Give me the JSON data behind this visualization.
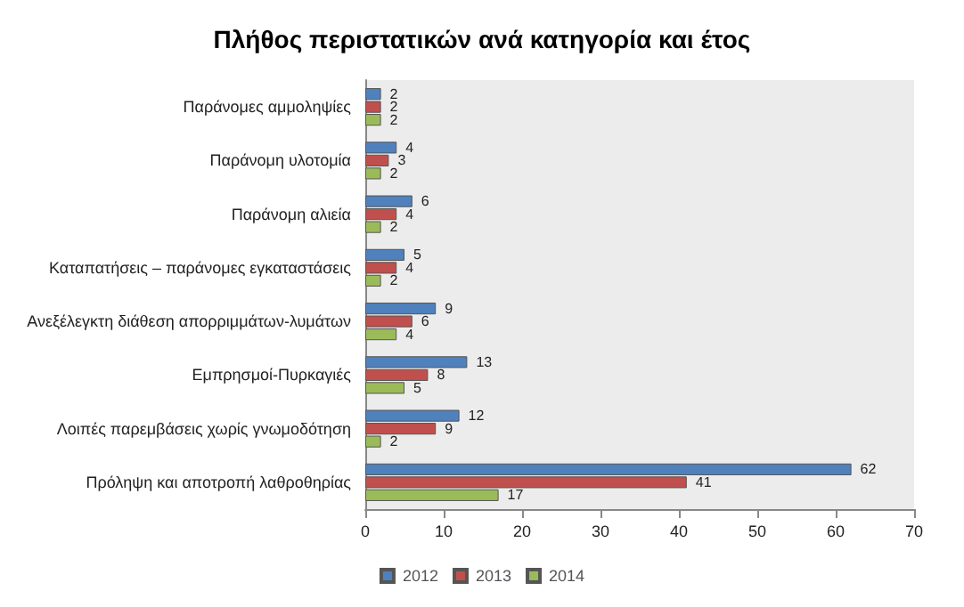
{
  "chart_data": {
    "type": "bar",
    "orientation": "horizontal",
    "title": "Πλήθος περιστατικών ανά κατηγορία και έτος",
    "categories": [
      "Παράνομες αμμοληψίες",
      "Παράνομη υλοτομία",
      "Παράνομη αλιεία",
      "Καταπατήσεις – παράνομες εγκαταστάσεις",
      "Ανεξέλεγκτη διάθεση απορριμμάτων-λυμάτων",
      "Εμπρησμοί-Πυρκαγιές",
      "Λοιπές παρεμβάσεις χωρίς γνωμοδότηση",
      "Πρόληψη και αποτροπή λαθροθηρίας"
    ],
    "series": [
      {
        "name": "2012",
        "color": "#4f81bd",
        "values": [
          2,
          4,
          6,
          5,
          9,
          13,
          12,
          62
        ]
      },
      {
        "name": "2013",
        "color": "#c0504d",
        "values": [
          2,
          3,
          4,
          4,
          6,
          8,
          9,
          41
        ]
      },
      {
        "name": "2014",
        "color": "#9bbb59",
        "values": [
          2,
          2,
          2,
          2,
          4,
          5,
          2,
          17
        ]
      }
    ],
    "xlim": [
      0,
      70
    ],
    "xticks": [
      0,
      10,
      20,
      30,
      40,
      50,
      60,
      70
    ],
    "grid": false,
    "legend": "bottom",
    "data_labels": true
  }
}
